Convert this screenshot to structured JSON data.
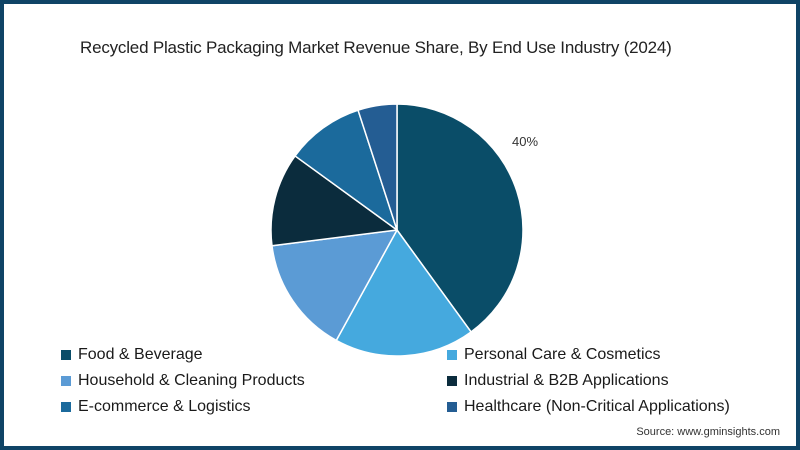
{
  "header": {
    "title": "Recycled Plastic Packaging Market Revenue Share, By End Use Industry (2024)"
  },
  "footer": {
    "source": "Source: www.gminsights.com"
  },
  "colors": {
    "frame_border": "#0f4466"
  },
  "chart_data": {
    "type": "pie",
    "title": "Recycled Plastic Packaging Market Revenue Share, By End Use Industry (2024)",
    "categories": [
      "Food & Beverage",
      "Personal Care & Cosmetics",
      "Household & Cleaning Products",
      "Industrial & B2B Applications",
      "E-commerce & Logistics",
      "Healthcare (Non-Critical Applications)"
    ],
    "values": [
      40,
      18,
      15,
      12,
      10,
      5
    ],
    "unit": "%",
    "colors": [
      "#0a4d68",
      "#45a9de",
      "#5b9bd5",
      "#0b2c3d",
      "#1b6a9c",
      "#245d93"
    ],
    "data_labels": [
      {
        "category": "Food & Beverage",
        "text": "40%"
      }
    ],
    "start_angle_deg": 0,
    "direction": "clockwise",
    "legend_position": "bottom",
    "legend": [
      "Food & Beverage",
      "Personal Care & Cosmetics",
      "Household & Cleaning Products",
      "Industrial & B2B Applications",
      "E-commerce & Logistics",
      "Healthcare (Non-Critical Applications)"
    ]
  }
}
